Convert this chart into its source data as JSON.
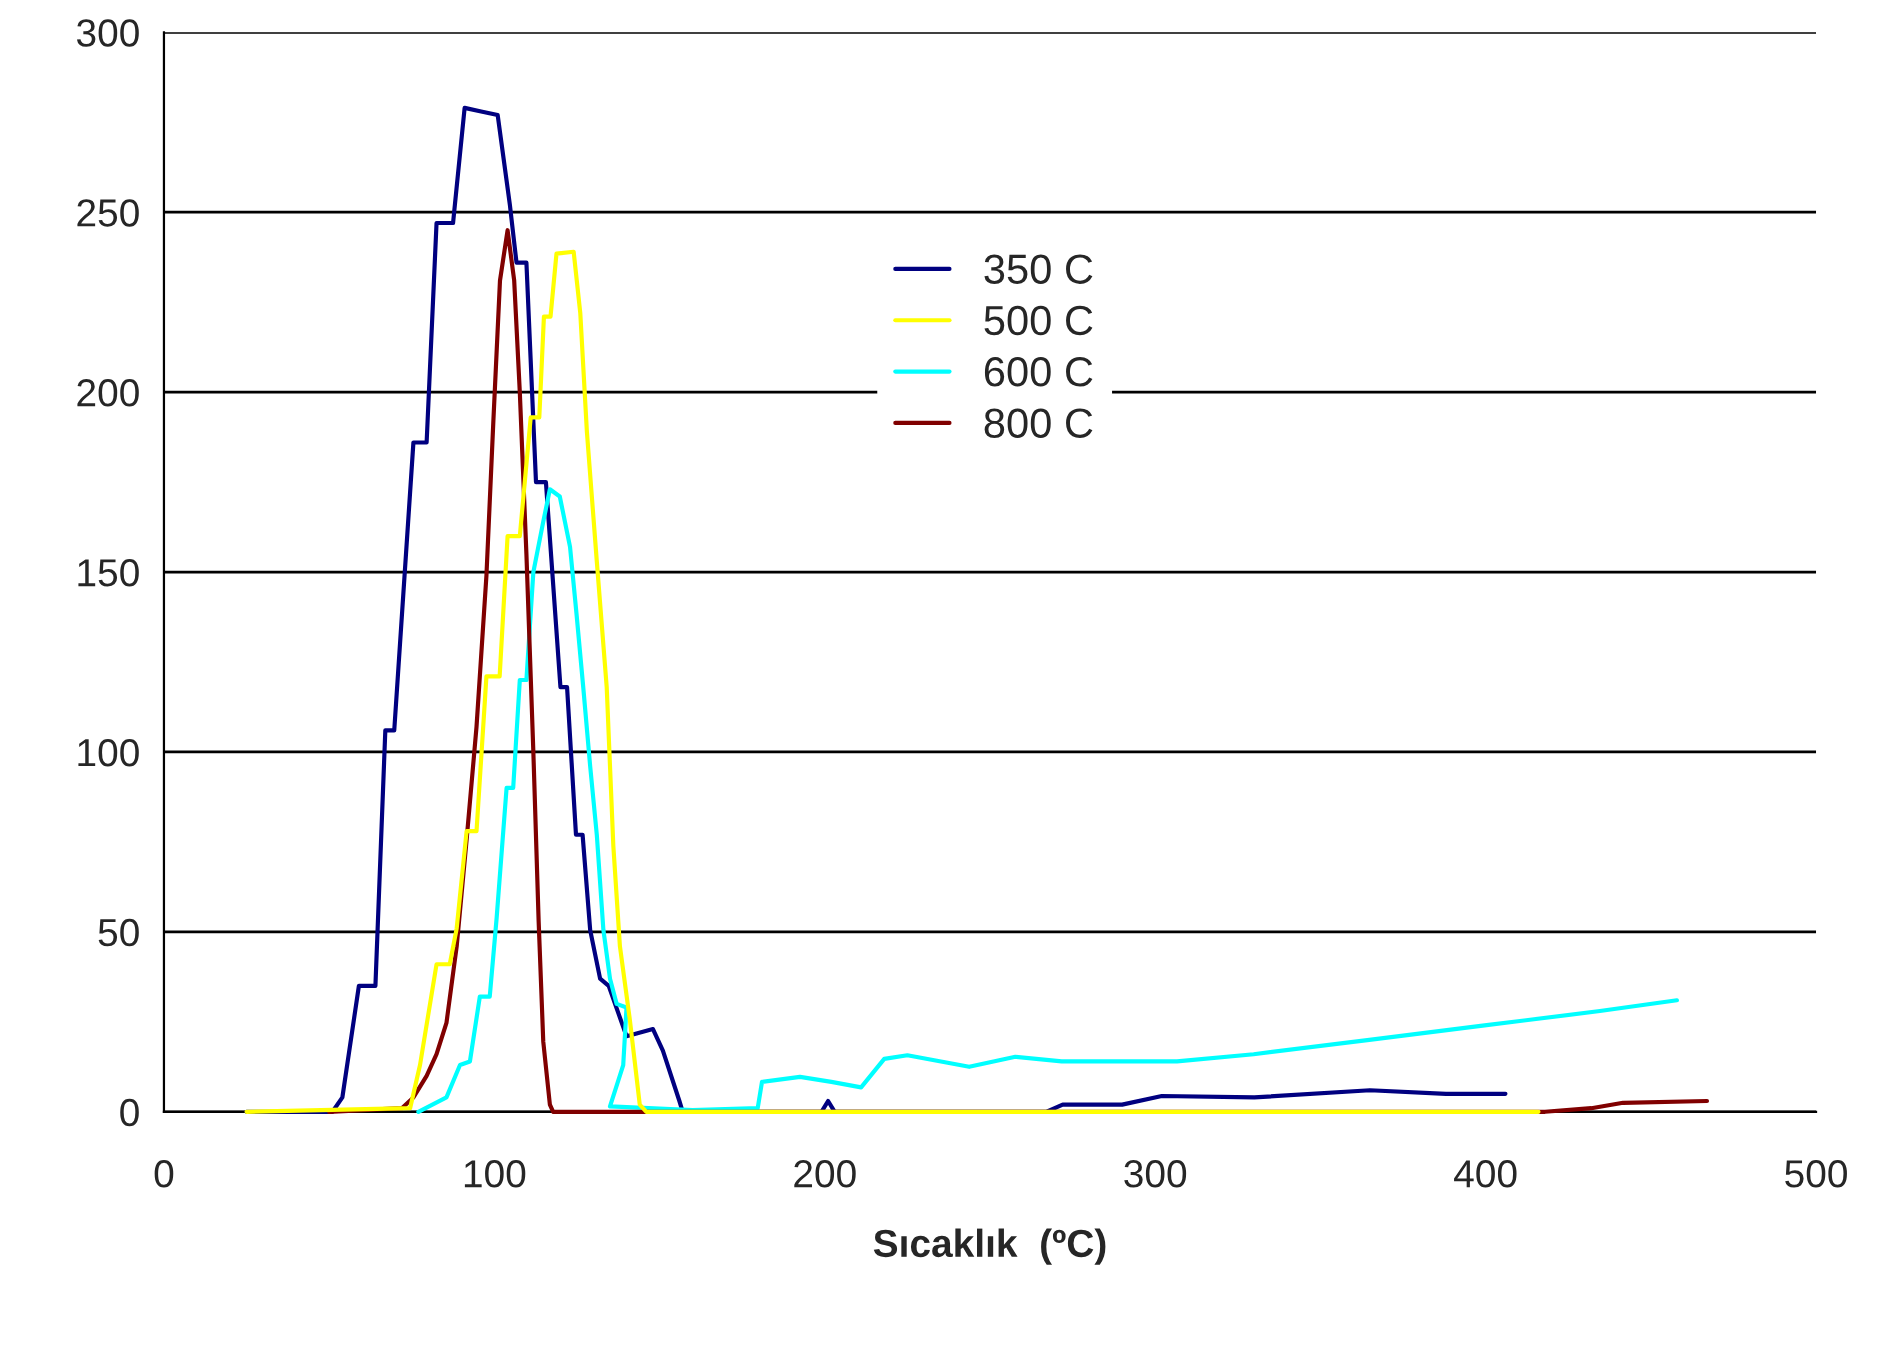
{
  "chart_data": {
    "type": "line",
    "xlabel": "Sıcaklık  (ºC)",
    "xlim": [
      0,
      500
    ],
    "xticks": [
      0,
      100,
      200,
      300,
      400,
      500
    ],
    "ylim": [
      0,
      300
    ],
    "yticks": [
      0,
      50,
      100,
      150,
      200,
      250,
      300
    ],
    "grid": "y",
    "legend": "top",
    "marker": "none",
    "line_style": "solid",
    "series": [
      {
        "name": "350 C",
        "color": "#000080",
        "x": [
          25,
          51,
          54,
          59,
          64,
          67,
          69.7,
          75.5,
          79.5,
          82.5,
          87.5,
          91,
          96,
          101,
          104.7,
          106.7,
          109.7,
          112.6,
          115.6,
          120,
          122,
          124.7,
          126.7,
          129,
          132,
          134.6,
          140,
          148,
          151,
          156,
          157,
          145,
          199,
          201,
          203,
          239,
          267,
          272,
          290,
          302,
          330,
          365,
          388,
          406
        ],
        "values": [
          0,
          0,
          4,
          35,
          35,
          106,
          106,
          186,
          186,
          247,
          247,
          279,
          278,
          277,
          252,
          236,
          236,
          175,
          175,
          118,
          118,
          77,
          77,
          50.5,
          37,
          35,
          21,
          23,
          17,
          3,
          0,
          0,
          0,
          3,
          0,
          0,
          0,
          2,
          2,
          4.4,
          4,
          6,
          5,
          5
        ]
      },
      {
        "name": "500 C",
        "color": "#ffff00",
        "x": [
          25,
          74.5,
          77.5,
          82.5,
          86.5,
          88.6,
          91.6,
          94.6,
          97.6,
          101.6,
          104,
          107.7,
          111,
          113.6,
          115,
          117,
          118.8,
          124,
          126,
          128,
          131,
          134,
          136,
          138,
          141,
          144,
          146,
          200,
          300,
          416
        ],
        "values": [
          0,
          1,
          13,
          41,
          41,
          51,
          78,
          78,
          121,
          121,
          160,
          160,
          193,
          193,
          221,
          221,
          238.5,
          239,
          222,
          189,
          153,
          118,
          74,
          46,
          25.6,
          2,
          0,
          0,
          0,
          0
        ]
      },
      {
        "name": "600 C",
        "color": "#00ffff",
        "x": [
          77,
          85.5,
          89.6,
          92.6,
          95.6,
          98.6,
          100.7,
          103.7,
          105.7,
          107.7,
          109.7,
          111.8,
          114.8,
          116.8,
          119.8,
          122.9,
          124.9,
          126.9,
          129,
          131,
          133,
          135,
          137,
          140,
          139,
          135,
          160,
          179.7,
          181,
          192.5,
          202,
          211,
          218,
          225,
          243.7,
          257.7,
          271.7,
          306.6,
          329.8,
          364.8,
          399.7,
          434.6,
          457.9
        ],
        "values": [
          0,
          4,
          13,
          14,
          32,
          32,
          54,
          90,
          90,
          120,
          120,
          150,
          164,
          173,
          171,
          157,
          138,
          118,
          96,
          77,
          50.5,
          37,
          30,
          29,
          13,
          1.5,
          0.5,
          1,
          8.3,
          9.7,
          8.3,
          6.8,
          14.7,
          15.7,
          12.5,
          15.3,
          14,
          14,
          16,
          20,
          24,
          28,
          31
        ]
      },
      {
        "name": "800 C",
        "color": "#800000",
        "x": [
          50,
          72,
          75.5,
          79.5,
          82.5,
          85.5,
          88.6,
          91.6,
          94.6,
          97.6,
          99.7,
          101.7,
          104,
          106,
          107.7,
          109.7,
          111.8,
          113.4,
          114.8,
          116.8,
          117.8,
          418,
          432,
          441.6,
          467
        ],
        "values": [
          0,
          1,
          4,
          10,
          16,
          24.7,
          46,
          75.6,
          107,
          149,
          192,
          231,
          245,
          231,
          200,
          155,
          100,
          53,
          19.5,
          2,
          0,
          0,
          1,
          2.5,
          3
        ]
      }
    ]
  }
}
